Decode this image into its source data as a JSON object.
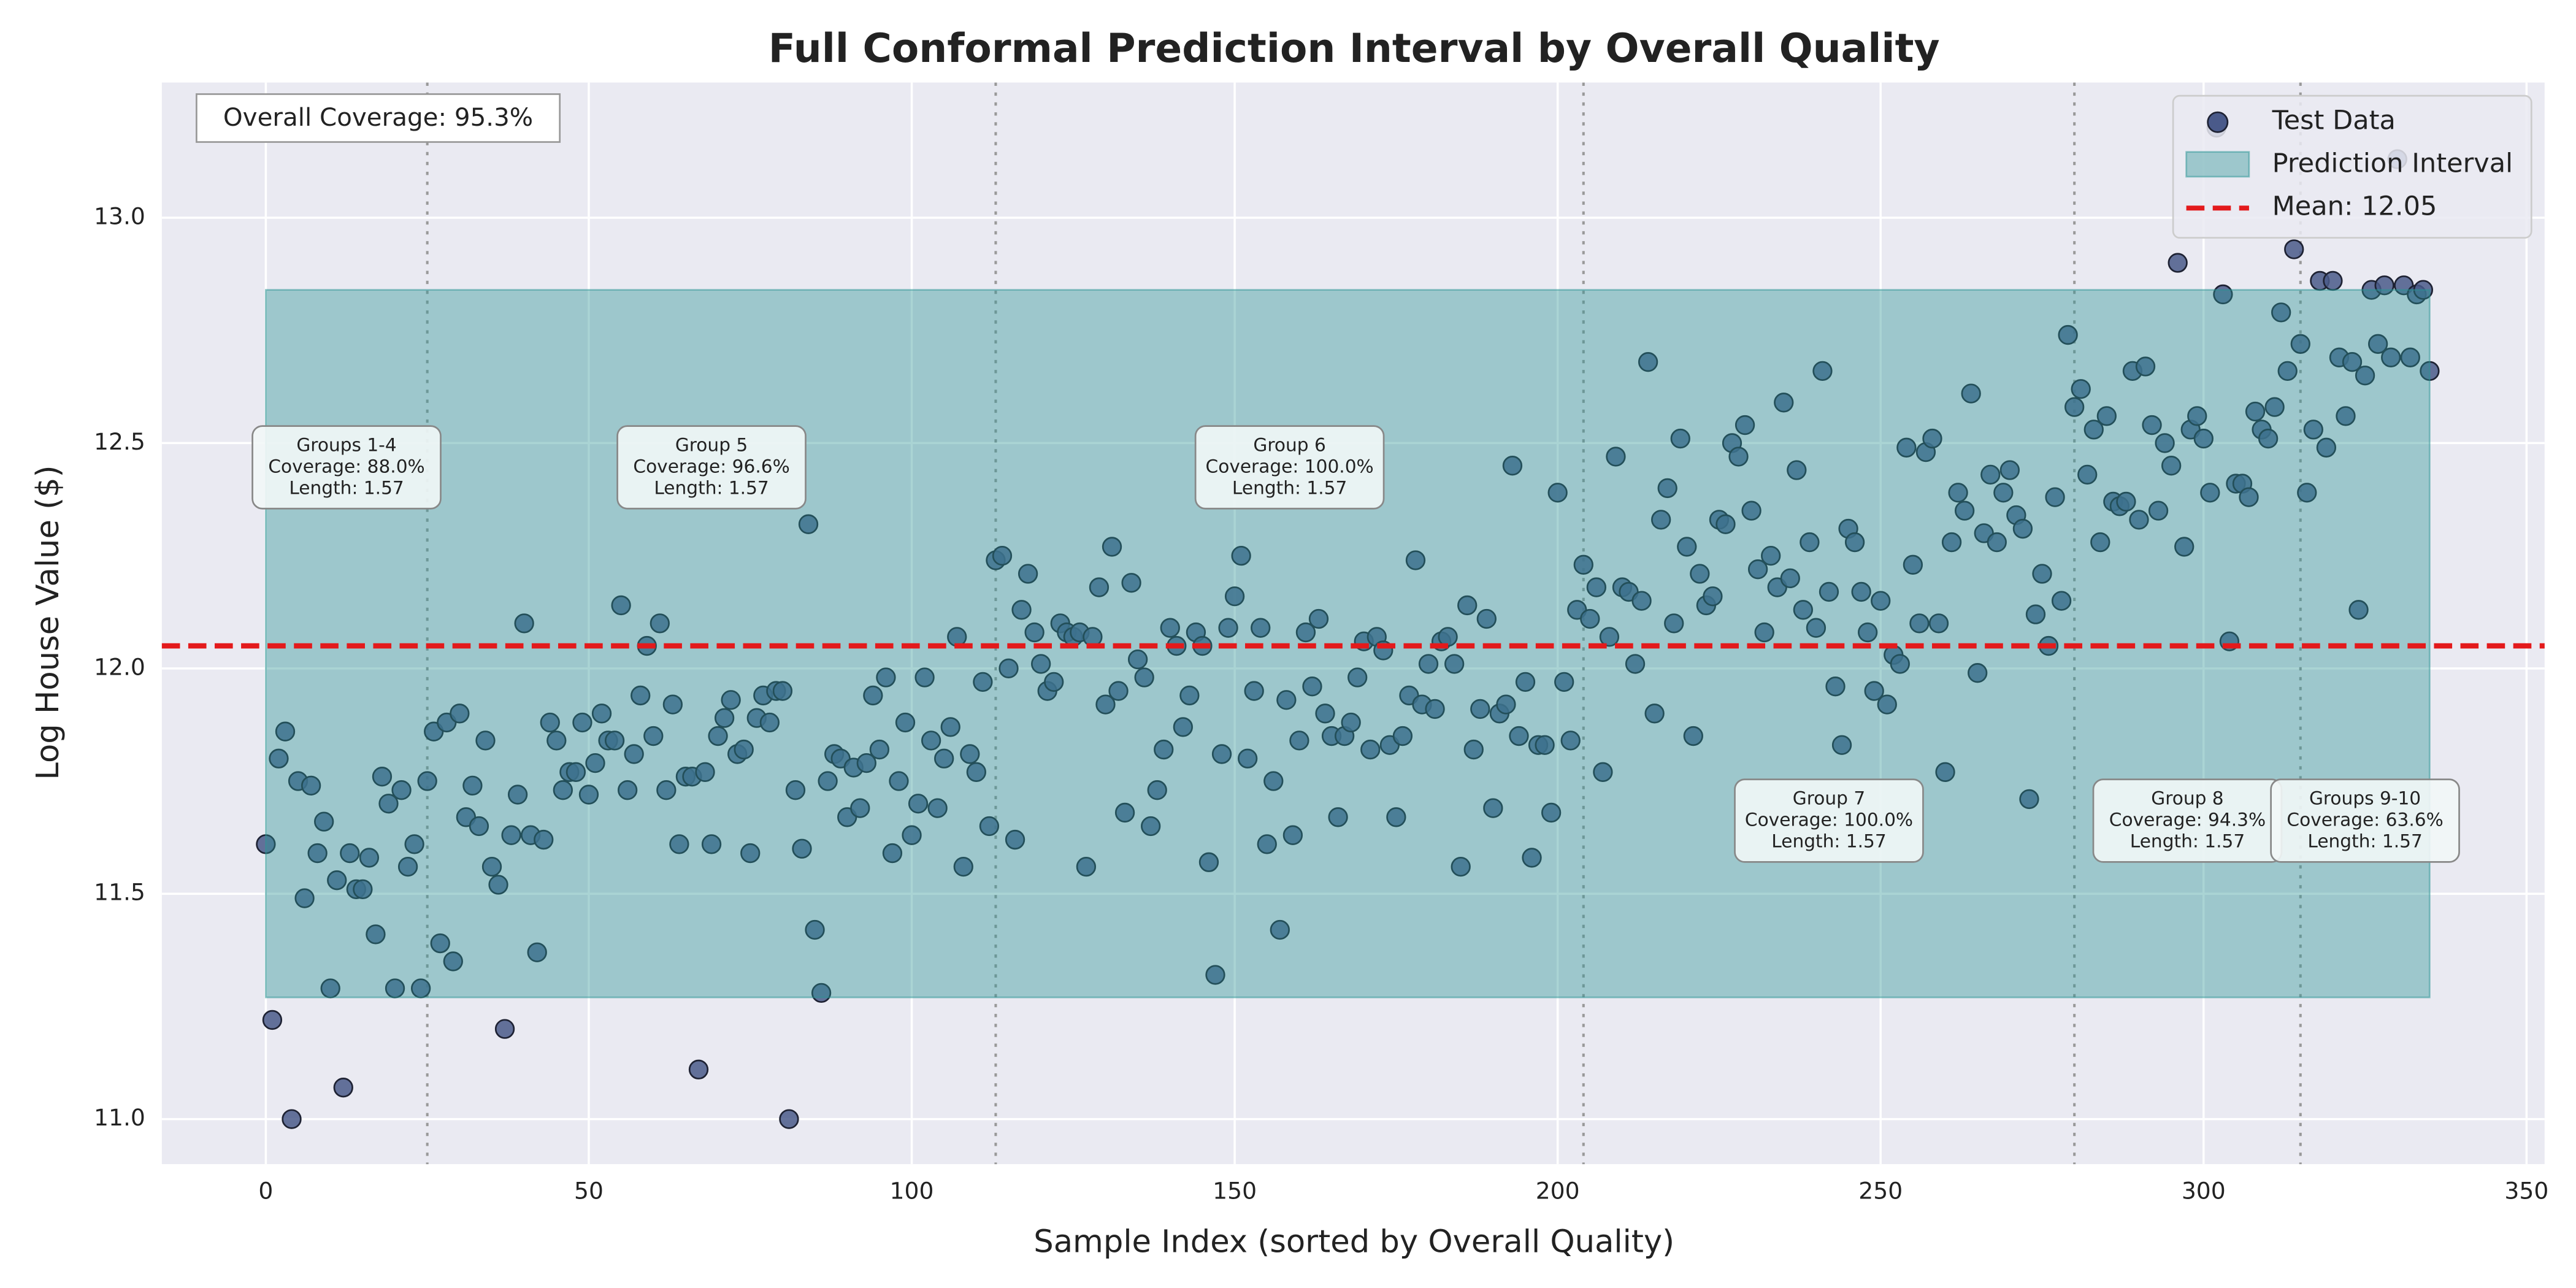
{
  "chart_data": {
    "type": "scatter",
    "title": "Full Conformal Prediction Interval by Overall Quality",
    "x_label": "Sample Index (sorted by Overall Quality)",
    "y_label": "Log House Value ($)",
    "coverage_text": "Overall Coverage: 95.3%",
    "xlim": [
      -16.1,
      352.8
    ],
    "ylim": [
      10.9,
      13.3
    ],
    "xticks": [
      0,
      50,
      100,
      150,
      200,
      250,
      300,
      350
    ],
    "yticks": [
      {
        "value": 11,
        "label": "11.0"
      },
      11.5,
      {
        "value": 12,
        "label": "12.0"
      },
      12.5,
      {
        "value": 13,
        "label": "13.0"
      }
    ],
    "grid": true,
    "legend": "upper right",
    "group_boundaries": [
      25,
      113,
      204,
      280,
      315
    ],
    "groups": [
      {
        "name": "Groups 1-4",
        "coverage": "Coverage: 88.0%",
        "length": "Length: 1.57"
      },
      {
        "name": "Group 5",
        "coverage": "Coverage: 96.6%",
        "length": "Length: 1.57"
      },
      {
        "name": "Group 6",
        "coverage": "Coverage: 100.0%",
        "length": "Length: 1.57"
      },
      {
        "name": "Group 7",
        "coverage": "Coverage: 100.0%",
        "length": "Length: 1.57"
      },
      {
        "name": "Group 8",
        "coverage": "Coverage: 94.3%",
        "length": "Length: 1.57"
      },
      {
        "name": "Groups 9-10",
        "coverage": "Coverage: 63.6%",
        "length": "Length: 1.57"
      }
    ],
    "interval": {
      "name": "Prediction Interval",
      "color": "#2a9393",
      "lower": 11.27,
      "upper": 12.84
    },
    "mean": {
      "value": 12.05,
      "label": "Mean: 12.05",
      "color": "#e31a1c"
    },
    "x": [
      0,
      1,
      2,
      3,
      4,
      5,
      6,
      7,
      8,
      9,
      10,
      11,
      12,
      13,
      14,
      15,
      16,
      17,
      18,
      19,
      20,
      21,
      22,
      23,
      24,
      25,
      26,
      27,
      28,
      29,
      30,
      31,
      32,
      33,
      34,
      35,
      36,
      37,
      38,
      39,
      40,
      41,
      42,
      43,
      44,
      45,
      46,
      47,
      48,
      49,
      50,
      51,
      52,
      53,
      54,
      55,
      56,
      57,
      58,
      59,
      60,
      61,
      62,
      63,
      64,
      65,
      66,
      67,
      68,
      69,
      70,
      71,
      72,
      73,
      74,
      75,
      76,
      77,
      78,
      79,
      80,
      81,
      82,
      83,
      84,
      85,
      86,
      87,
      88,
      89,
      90,
      91,
      92,
      93,
      94,
      95,
      96,
      97,
      98,
      99,
      100,
      101,
      102,
      103,
      104,
      105,
      106,
      107,
      108,
      109,
      110,
      111,
      112,
      113,
      114,
      115,
      116,
      117,
      118,
      119,
      120,
      121,
      122,
      123,
      124,
      125,
      126,
      127,
      128,
      129,
      130,
      131,
      132,
      133,
      134,
      135,
      136,
      137,
      138,
      139,
      140,
      141,
      142,
      143,
      144,
      145,
      146,
      147,
      148,
      149,
      150,
      151,
      152,
      153,
      154,
      155,
      156,
      157,
      158,
      159,
      160,
      161,
      162,
      163,
      164,
      165,
      166,
      167,
      168,
      169,
      170,
      171,
      172,
      173,
      174,
      175,
      176,
      177,
      178,
      179,
      180,
      181,
      182,
      183,
      184,
      185,
      186,
      187,
      188,
      189,
      190,
      191,
      192,
      193,
      194,
      195,
      196,
      197,
      198,
      199,
      200,
      201,
      202,
      203,
      204,
      205,
      206,
      207,
      208,
      209,
      210,
      211,
      212,
      213,
      214,
      215,
      216,
      217,
      218,
      219,
      220,
      221,
      222,
      223,
      224,
      225,
      226,
      227,
      228,
      229,
      230,
      231,
      232,
      233,
      234,
      235,
      236,
      237,
      238,
      239,
      240,
      241,
      242,
      243,
      244,
      245,
      246,
      247,
      248,
      249,
      250,
      251,
      252,
      253,
      254,
      255,
      256,
      257,
      258,
      259,
      260,
      261,
      262,
      263,
      264,
      265,
      266,
      267,
      268,
      269,
      270,
      271,
      272,
      273,
      274,
      275,
      276,
      277,
      278,
      279,
      280,
      281,
      282,
      283,
      284,
      285,
      286,
      287,
      288,
      289,
      290,
      291,
      292,
      293,
      294,
      295,
      296,
      297,
      298,
      299,
      300,
      301,
      302,
      303,
      304,
      305,
      306,
      307,
      308,
      309,
      310,
      311,
      312,
      313,
      314,
      315,
      316,
      317,
      318,
      319,
      320,
      321,
      322,
      323,
      324,
      325,
      326,
      327,
      328,
      329,
      330,
      331,
      332,
      333,
      334,
      335
    ],
    "series": [
      {
        "name": "Test Data",
        "color": "#4a5a8a",
        "values": [
          11.61,
          11.22,
          11.8,
          11.86,
          11.0,
          11.75,
          11.49,
          11.74,
          11.59,
          11.66,
          11.29,
          11.53,
          11.07,
          11.59,
          11.51,
          11.51,
          11.58,
          11.41,
          11.76,
          11.7,
          11.29,
          11.73,
          11.56,
          11.61,
          11.29,
          11.75,
          11.86,
          11.39,
          11.88,
          11.35,
          11.9,
          11.67,
          11.74,
          11.65,
          11.84,
          11.56,
          11.52,
          11.2,
          11.63,
          11.72,
          12.1,
          11.63,
          11.37,
          11.62,
          11.88,
          11.84,
          11.73,
          11.77,
          11.77,
          11.88,
          11.72,
          11.79,
          11.9,
          11.84,
          11.84,
          12.14,
          11.73,
          11.81,
          11.94,
          12.05,
          11.85,
          12.1,
          11.73,
          11.92,
          11.61,
          11.76,
          11.76,
          11.11,
          11.77,
          11.61,
          11.85,
          11.89,
          11.93,
          11.81,
          11.82,
          11.59,
          11.89,
          11.94,
          11.88,
          11.95,
          11.95,
          11.0,
          11.73,
          11.6,
          12.32,
          11.42,
          11.28,
          11.75,
          11.81,
          11.8,
          11.67,
          11.78,
          11.69,
          11.79,
          11.94,
          11.82,
          11.98,
          11.59,
          11.75,
          11.88,
          11.63,
          11.7,
          11.98,
          11.84,
          11.69,
          11.8,
          11.87,
          12.07,
          11.56,
          11.81,
          11.77,
          11.97,
          11.65,
          12.24,
          12.25,
          12.0,
          11.62,
          12.13,
          12.21,
          12.08,
          12.01,
          11.95,
          11.97,
          12.1,
          12.08,
          12.07,
          12.08,
          11.56,
          12.07,
          12.18,
          11.92,
          12.27,
          11.95,
          11.68,
          12.19,
          12.02,
          11.98,
          11.65,
          11.73,
          11.82,
          12.09,
          12.05,
          11.87,
          11.94,
          12.08,
          12.05,
          11.57,
          11.32,
          11.81,
          12.09,
          12.16,
          12.25,
          11.8,
          11.95,
          12.09,
          11.61,
          11.75,
          11.42,
          11.93,
          11.63,
          11.84,
          12.08,
          11.96,
          12.11,
          11.9,
          11.85,
          11.67,
          11.85,
          11.88,
          11.98,
          12.06,
          11.82,
          12.07,
          12.04,
          11.83,
          11.67,
          11.85,
          11.94,
          12.24,
          11.92,
          12.01,
          11.91,
          12.06,
          12.07,
          12.01,
          11.56,
          12.14,
          11.82,
          11.91,
          12.11,
          11.69,
          11.9,
          11.92,
          12.45,
          11.85,
          11.97,
          11.58,
          11.83,
          11.83,
          11.68,
          12.39,
          11.97,
          11.84,
          12.13,
          12.23,
          12.11,
          12.18,
          11.77,
          12.07,
          12.47,
          12.18,
          12.17,
          12.01,
          12.15,
          12.68,
          11.9,
          12.33,
          12.4,
          12.1,
          12.51,
          12.27,
          11.85,
          12.21,
          12.14,
          12.16,
          12.33,
          12.32,
          12.5,
          12.47,
          12.54,
          12.35,
          12.22,
          12.08,
          12.25,
          12.18,
          12.59,
          12.2,
          12.44,
          12.13,
          12.28,
          12.09,
          12.66,
          12.17,
          11.96,
          11.83,
          12.31,
          12.28,
          12.17,
          12.08,
          11.95,
          12.15,
          11.92,
          12.03,
          12.01,
          12.49,
          12.23,
          12.1,
          12.48,
          12.51,
          12.1,
          11.77,
          12.28,
          12.39,
          12.35,
          12.61,
          11.99,
          12.3,
          12.43,
          12.28,
          12.39,
          12.44,
          12.34,
          12.31,
          11.71,
          12.12,
          12.21,
          12.05,
          12.38,
          12.15,
          12.74,
          12.58,
          12.62,
          12.43,
          12.53,
          12.28,
          12.56,
          12.37,
          12.36,
          12.37,
          12.66,
          12.33,
          12.67,
          12.54,
          12.35,
          12.5,
          12.45,
          12.9,
          12.27,
          12.53,
          12.56,
          12.51,
          12.39,
          13.2,
          12.83,
          12.06,
          12.41,
          12.41,
          12.38,
          12.57,
          12.53,
          12.51,
          12.58,
          12.79,
          12.66,
          12.93,
          12.72,
          12.39,
          12.53,
          12.86,
          12.49,
          12.86,
          12.69,
          12.56,
          12.68,
          12.13,
          12.65,
          12.84,
          12.72,
          12.85,
          12.69,
          13.13,
          12.85,
          12.69,
          12.83,
          12.84,
          12.66
        ]
      }
    ]
  }
}
